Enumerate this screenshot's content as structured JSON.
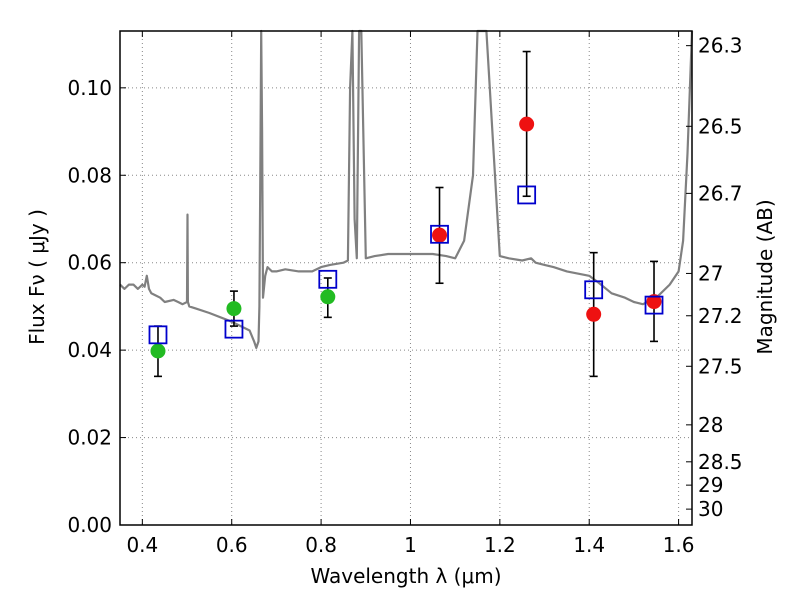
{
  "chart_data": {
    "type": "scatter",
    "xlabel": "Wavelength  λ (μm)",
    "ylabel": "Flux  Fν  ( μJy )",
    "y2label": "Magnitude (AB)",
    "xlim": [
      0.35,
      1.63
    ],
    "ylim": [
      0.0,
      0.113
    ],
    "grid": true,
    "x_ticks": [
      {
        "value": 0.4,
        "label": "0.4"
      },
      {
        "value": 0.6,
        "label": "0.6"
      },
      {
        "value": 0.8,
        "label": "0.8"
      },
      {
        "value": 1.0,
        "label": "1"
      },
      {
        "value": 1.2,
        "label": "1.2"
      },
      {
        "value": 1.4,
        "label": "1.4"
      },
      {
        "value": 1.6,
        "label": "1.6"
      }
    ],
    "y_ticks": [
      {
        "value": 0.0,
        "label": "0.00"
      },
      {
        "value": 0.02,
        "label": "0.02"
      },
      {
        "value": 0.04,
        "label": "0.04"
      },
      {
        "value": 0.06,
        "label": "0.06"
      },
      {
        "value": 0.08,
        "label": "0.08"
      },
      {
        "value": 0.1,
        "label": "0.10"
      }
    ],
    "mag_ticks": [
      {
        "value": 26.3,
        "label": "26.3"
      },
      {
        "value": 26.5,
        "label": "26.5"
      },
      {
        "value": 26.7,
        "label": "26.7"
      },
      {
        "value": 27.0,
        "label": "27"
      },
      {
        "value": 27.2,
        "label": "27.2"
      },
      {
        "value": 27.5,
        "label": "27.5"
      },
      {
        "value": 28.0,
        "label": "28"
      },
      {
        "value": 28.5,
        "label": "28.5"
      },
      {
        "value": 29.0,
        "label": "29"
      },
      {
        "value": 30.0,
        "label": "30"
      }
    ],
    "colors": {
      "sed": "#808080",
      "green": "#22bb22",
      "red": "#ee1111",
      "model": "#0000cc",
      "errorbar": "#000000",
      "grid": "#888888"
    },
    "series": [
      {
        "kind": "sed_model_line",
        "x": [
          0.35,
          0.36,
          0.37,
          0.38,
          0.39,
          0.4,
          0.405,
          0.41,
          0.415,
          0.42,
          0.43,
          0.44,
          0.45,
          0.47,
          0.48,
          0.49,
          0.5,
          0.501,
          0.502,
          0.505,
          0.52,
          0.55,
          0.6,
          0.62,
          0.64,
          0.65,
          0.655,
          0.66,
          0.662,
          0.664,
          0.666,
          0.668,
          0.67,
          0.675,
          0.68,
          0.69,
          0.7,
          0.72,
          0.75,
          0.78,
          0.8,
          0.82,
          0.85,
          0.86,
          0.865,
          0.87,
          0.875,
          0.88,
          0.885,
          0.89,
          0.9,
          0.92,
          0.95,
          0.98,
          1.0,
          1.05,
          1.08,
          1.1,
          1.12,
          1.14,
          1.15,
          1.16,
          1.17,
          1.2,
          1.22,
          1.25,
          1.27,
          1.28,
          1.3,
          1.32,
          1.35,
          1.4,
          1.42,
          1.45,
          1.48,
          1.5,
          1.52,
          1.55,
          1.58,
          1.6,
          1.61,
          1.62,
          1.63
        ],
        "y": [
          0.055,
          0.054,
          0.055,
          0.055,
          0.054,
          0.055,
          0.0545,
          0.057,
          0.054,
          0.053,
          0.0525,
          0.052,
          0.051,
          0.0515,
          0.051,
          0.0505,
          0.051,
          0.071,
          0.051,
          0.05,
          0.0495,
          0.0485,
          0.0465,
          0.0455,
          0.0445,
          0.042,
          0.0405,
          0.042,
          0.05,
          0.08,
          0.113,
          0.09,
          0.052,
          0.057,
          0.059,
          0.058,
          0.058,
          0.0585,
          0.058,
          0.058,
          0.059,
          0.0595,
          0.06,
          0.0605,
          0.1,
          0.113,
          0.07,
          0.061,
          0.113,
          0.113,
          0.061,
          0.0615,
          0.062,
          0.062,
          0.062,
          0.062,
          0.0615,
          0.061,
          0.065,
          0.08,
          0.113,
          0.113,
          0.113,
          0.0615,
          0.061,
          0.0605,
          0.061,
          0.06,
          0.0595,
          0.059,
          0.058,
          0.057,
          0.0555,
          0.053,
          0.052,
          0.051,
          0.0505,
          0.052,
          0.055,
          0.058,
          0.065,
          0.085,
          0.113
        ]
      },
      {
        "kind": "observed_green",
        "x": [
          0.435,
          0.605,
          0.815
        ],
        "y": [
          0.0398,
          0.0495,
          0.0522
        ],
        "err_low": [
          0.034,
          0.0455,
          0.0475
        ],
        "err_high": [
          0.0455,
          0.0535,
          0.0565
        ]
      },
      {
        "kind": "observed_red",
        "x": [
          1.065,
          1.26,
          1.41,
          1.545
        ],
        "y": [
          0.0663,
          0.0917,
          0.0482,
          0.0511
        ],
        "err_low": [
          0.0553,
          0.0752,
          0.034,
          0.042
        ],
        "err_high": [
          0.0772,
          0.1083,
          0.0623,
          0.0603
        ]
      },
      {
        "kind": "model_photometry_squares",
        "x": [
          0.435,
          0.605,
          0.815,
          1.065,
          1.26,
          1.41,
          1.545
        ],
        "y": [
          0.0435,
          0.0448,
          0.0562,
          0.0665,
          0.0755,
          0.0538,
          0.0503
        ]
      }
    ]
  }
}
